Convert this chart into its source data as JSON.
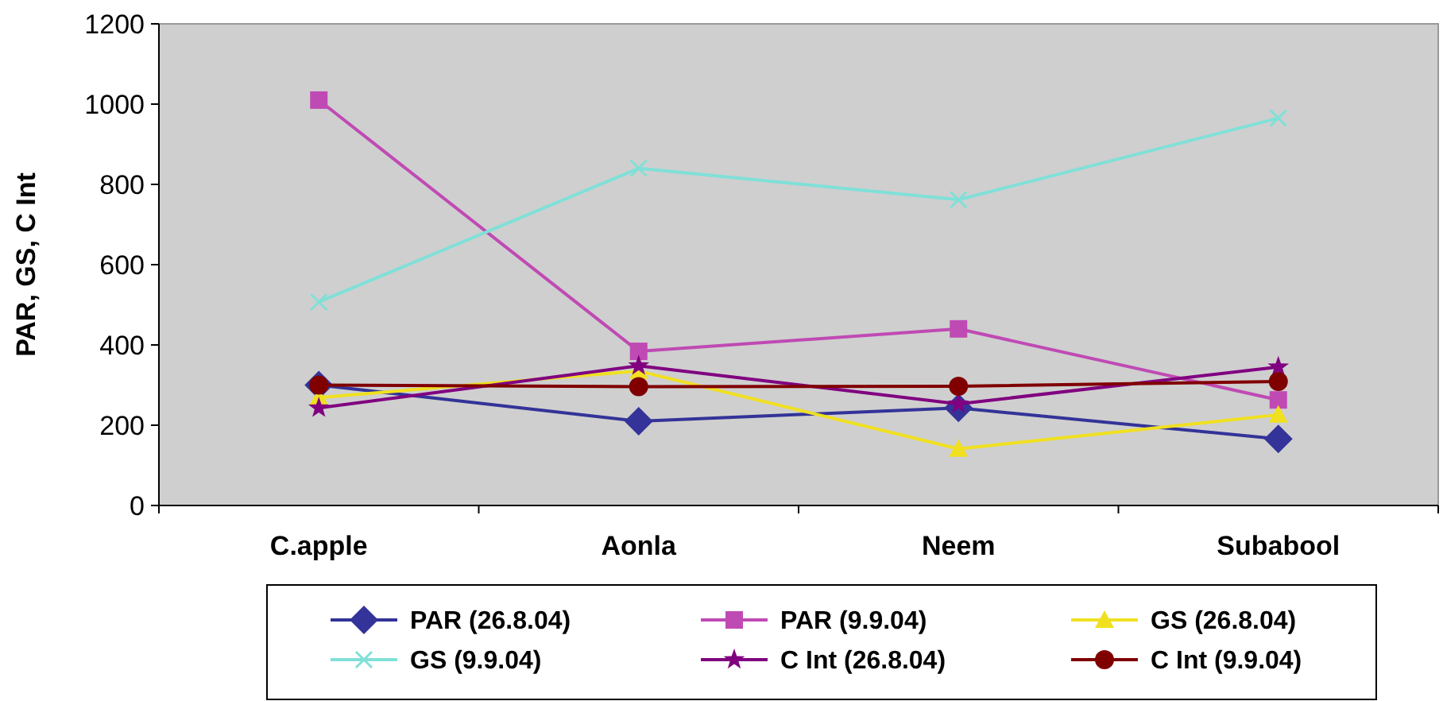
{
  "chart_data": {
    "type": "line",
    "ylabel": "PAR, GS,  C Int",
    "categories": [
      "C.apple",
      "Aonla",
      "Neem",
      "Subabool"
    ],
    "ylim": [
      0,
      1200
    ],
    "yticks": [
      0,
      200,
      400,
      600,
      800,
      1000,
      1200
    ],
    "grid": false,
    "legend": "bottom",
    "series": [
      {
        "name": "PAR (26.8.04)",
        "color": "#333399",
        "marker": "diamond",
        "values": [
          300,
          210,
          243,
          166
        ]
      },
      {
        "name": "PAR (9.9.04)",
        "color": "#c04ab4",
        "marker": "square",
        "values": [
          1010,
          384,
          440,
          263
        ]
      },
      {
        "name": "GS (26.8.04)",
        "color": "#f0e020",
        "marker": "triangle",
        "values": [
          269,
          335,
          141,
          226
        ]
      },
      {
        "name": "GS (9.9.04)",
        "color": "#80e0d8",
        "marker": "cross",
        "values": [
          507,
          840,
          762,
          965
        ]
      },
      {
        "name": "C Int (26.8.04)",
        "color": "#800080",
        "marker": "star",
        "values": [
          243,
          348,
          253,
          345
        ]
      },
      {
        "name": "C Int (9.9.04)",
        "color": "#800000",
        "marker": "circle",
        "values": [
          300,
          296,
          297,
          309
        ]
      }
    ]
  }
}
